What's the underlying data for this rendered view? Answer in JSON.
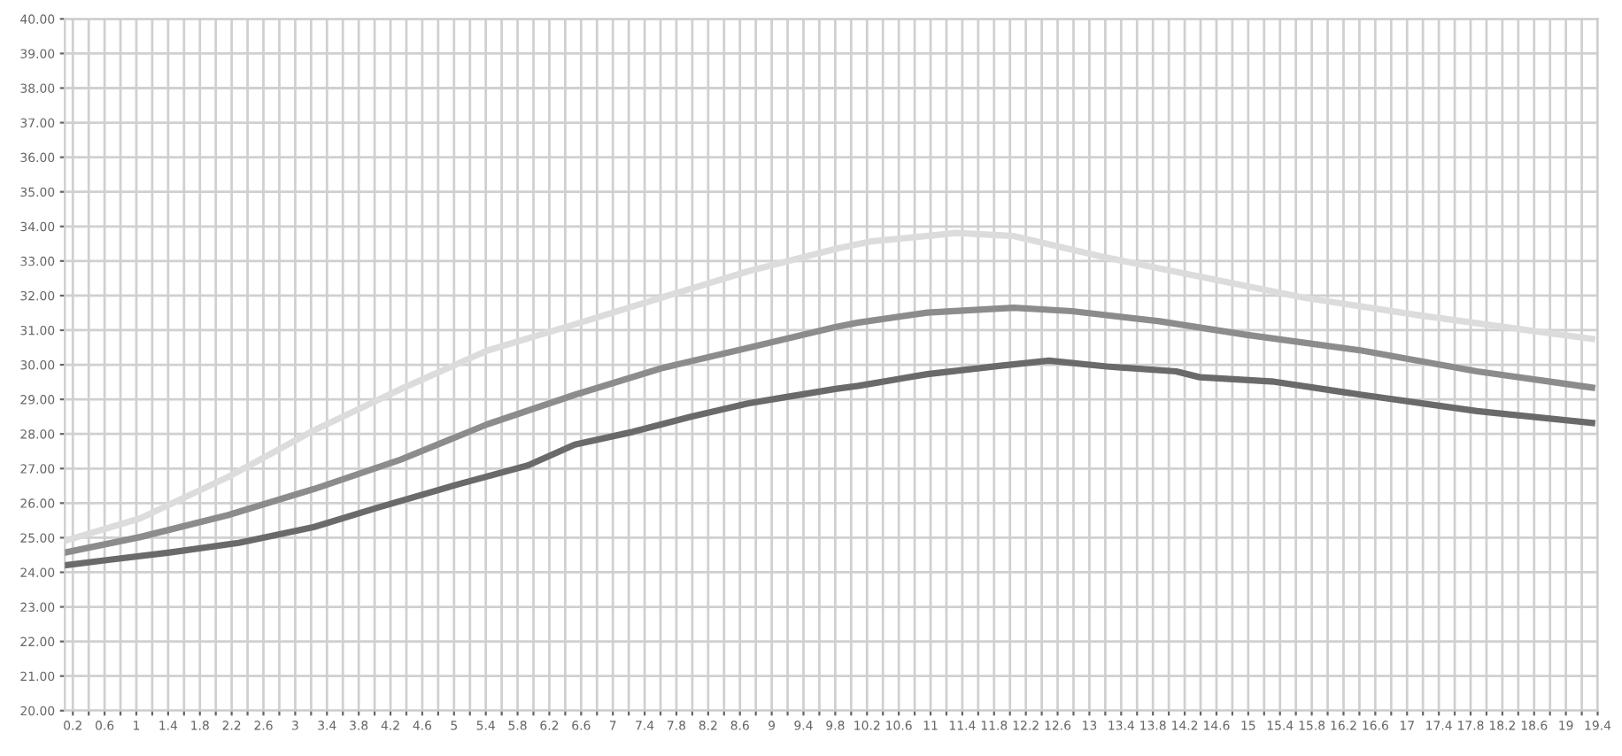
{
  "chart_data": {
    "type": "line",
    "series": [
      {
        "color": "#dcdcdc",
        "x": [
          0.1,
          1.05,
          2.15,
          3.24,
          4.33,
          5.42,
          6.52,
          7.61,
          8.7,
          9.8,
          10.23,
          11.33,
          12.05,
          13.15,
          14.24,
          15.7,
          17.15,
          18.61,
          19.33
        ],
        "values": [
          24.91,
          25.56,
          26.75,
          28.11,
          29.3,
          30.41,
          31.17,
          31.94,
          32.7,
          33.35,
          33.56,
          33.81,
          33.72,
          33.13,
          32.62,
          31.94,
          31.43,
          30.97,
          30.75
        ]
      },
      {
        "color": "#8c8c8c",
        "x": [
          0.1,
          1.05,
          2.15,
          3.24,
          4.33,
          5.42,
          6.52,
          7.61,
          8.7,
          9.8,
          10.09,
          10.96,
          12.05,
          12.78,
          13.88,
          14.97,
          16.43,
          17.88,
          19.33
        ],
        "values": [
          24.57,
          25.02,
          25.65,
          26.41,
          27.26,
          28.28,
          29.13,
          29.9,
          30.49,
          31.09,
          31.22,
          31.51,
          31.65,
          31.55,
          31.26,
          30.87,
          30.41,
          29.81,
          29.34
        ]
      },
      {
        "color": "#6a6a6a",
        "x": [
          0.1,
          0.69,
          1.42,
          2.29,
          3.24,
          4.04,
          5.06,
          5.93,
          6.52,
          7.25,
          7.97,
          8.7,
          9.14,
          9.8,
          10.09,
          10.96,
          11.91,
          12.49,
          13.22,
          14.09,
          14.39,
          15.33,
          16.43,
          17.88,
          19.33
        ],
        "values": [
          24.2,
          24.37,
          24.57,
          24.85,
          25.31,
          25.87,
          26.55,
          27.09,
          27.69,
          28.06,
          28.49,
          28.88,
          29.05,
          29.3,
          29.39,
          29.73,
          29.98,
          30.12,
          29.95,
          29.81,
          29.64,
          29.51,
          29.13,
          28.66,
          28.32
        ]
      }
    ],
    "xlim": [
      0.1,
      19.4
    ],
    "ylim": [
      20,
      40
    ],
    "xticks": [
      0.2,
      {
        "value": 0.4,
        "label": null
      },
      0.6,
      {
        "value": 0.8,
        "label": null
      },
      1,
      {
        "value": 1.2,
        "label": null
      },
      1.4,
      {
        "value": 1.6,
        "label": null
      },
      1.8,
      {
        "value": 2.0,
        "label": null
      },
      2.2,
      {
        "value": 2.4,
        "label": null
      },
      2.6,
      {
        "value": 2.8,
        "label": null
      },
      3,
      {
        "value": 3.2,
        "label": null
      },
      3.4,
      {
        "value": 3.6,
        "label": null
      },
      3.8,
      {
        "value": 4.0,
        "label": null
      },
      4.2,
      {
        "value": 4.4,
        "label": null
      },
      4.6,
      {
        "value": 4.8,
        "label": null
      },
      5,
      {
        "value": 5.2,
        "label": null
      },
      5.4,
      {
        "value": 5.6,
        "label": null
      },
      5.8,
      {
        "value": 6.0,
        "label": null
      },
      6.2,
      {
        "value": 6.4,
        "label": null
      },
      6.6,
      {
        "value": 6.8,
        "label": null
      },
      7,
      {
        "value": 7.2,
        "label": null
      },
      7.4,
      {
        "value": 7.6,
        "label": null
      },
      7.8,
      {
        "value": 8.0,
        "label": null
      },
      8.2,
      {
        "value": 8.4,
        "label": null
      },
      8.6,
      {
        "value": 8.8,
        "label": null
      },
      9,
      {
        "value": 9.2,
        "label": null
      },
      9.4,
      {
        "value": 9.6,
        "label": null
      },
      9.8,
      {
        "value": 10.0,
        "label": null
      },
      10.2,
      {
        "value": 10.4,
        "label": null
      },
      10.6,
      {
        "value": 10.8,
        "label": null
      },
      11,
      {
        "value": 11.2,
        "label": null
      },
      11.4,
      {
        "value": 11.6,
        "label": null
      },
      11.8,
      {
        "value": 12.0,
        "label": null
      },
      12.2,
      {
        "value": 12.4,
        "label": null
      },
      12.6,
      {
        "value": 12.8,
        "label": null
      },
      13,
      {
        "value": 13.2,
        "label": null
      },
      13.4,
      {
        "value": 13.6,
        "label": null
      },
      13.8,
      {
        "value": 14.0,
        "label": null
      },
      14.2,
      {
        "value": 14.4,
        "label": null
      },
      14.6,
      {
        "value": 14.8,
        "label": null
      },
      15,
      {
        "value": 15.2,
        "label": null
      },
      15.4,
      {
        "value": 15.6,
        "label": null
      },
      15.8,
      {
        "value": 16.0,
        "label": null
      },
      16.2,
      {
        "value": 16.4,
        "label": null
      },
      16.6,
      {
        "value": 16.8,
        "label": null
      },
      17,
      {
        "value": 17.2,
        "label": null
      },
      17.4,
      {
        "value": 17.6,
        "label": null
      },
      17.8,
      {
        "value": 18.0,
        "label": null
      },
      18.2,
      {
        "value": 18.4,
        "label": null
      },
      18.6,
      {
        "value": 18.8,
        "label": null
      },
      19,
      {
        "value": 19.2,
        "label": null
      },
      19.4
    ],
    "yticks": [
      {
        "value": 20,
        "label": "20.00"
      },
      {
        "value": 21,
        "label": "21.00"
      },
      {
        "value": 22,
        "label": "22.00"
      },
      {
        "value": 23,
        "label": "23.00"
      },
      {
        "value": 24,
        "label": "24.00"
      },
      {
        "value": 25,
        "label": "25.00"
      },
      {
        "value": 26,
        "label": "26.00"
      },
      {
        "value": 27,
        "label": "27.00"
      },
      {
        "value": 28,
        "label": "28.00"
      },
      {
        "value": 29,
        "label": "29.00"
      },
      {
        "value": 30,
        "label": "30.00"
      },
      {
        "value": 31,
        "label": "31.00"
      },
      {
        "value": 32,
        "label": "32.00"
      },
      {
        "value": 33,
        "label": "33.00"
      },
      {
        "value": 34,
        "label": "34.00"
      },
      {
        "value": 35,
        "label": "35.00"
      },
      {
        "value": 36,
        "label": "36.00"
      },
      {
        "value": 37,
        "label": "37.00"
      },
      {
        "value": 38,
        "label": "38.00"
      },
      {
        "value": 39,
        "label": "39.00"
      },
      {
        "value": 40,
        "label": "40.00"
      }
    ],
    "grid": true,
    "marker": "none",
    "line_style": "solid"
  }
}
